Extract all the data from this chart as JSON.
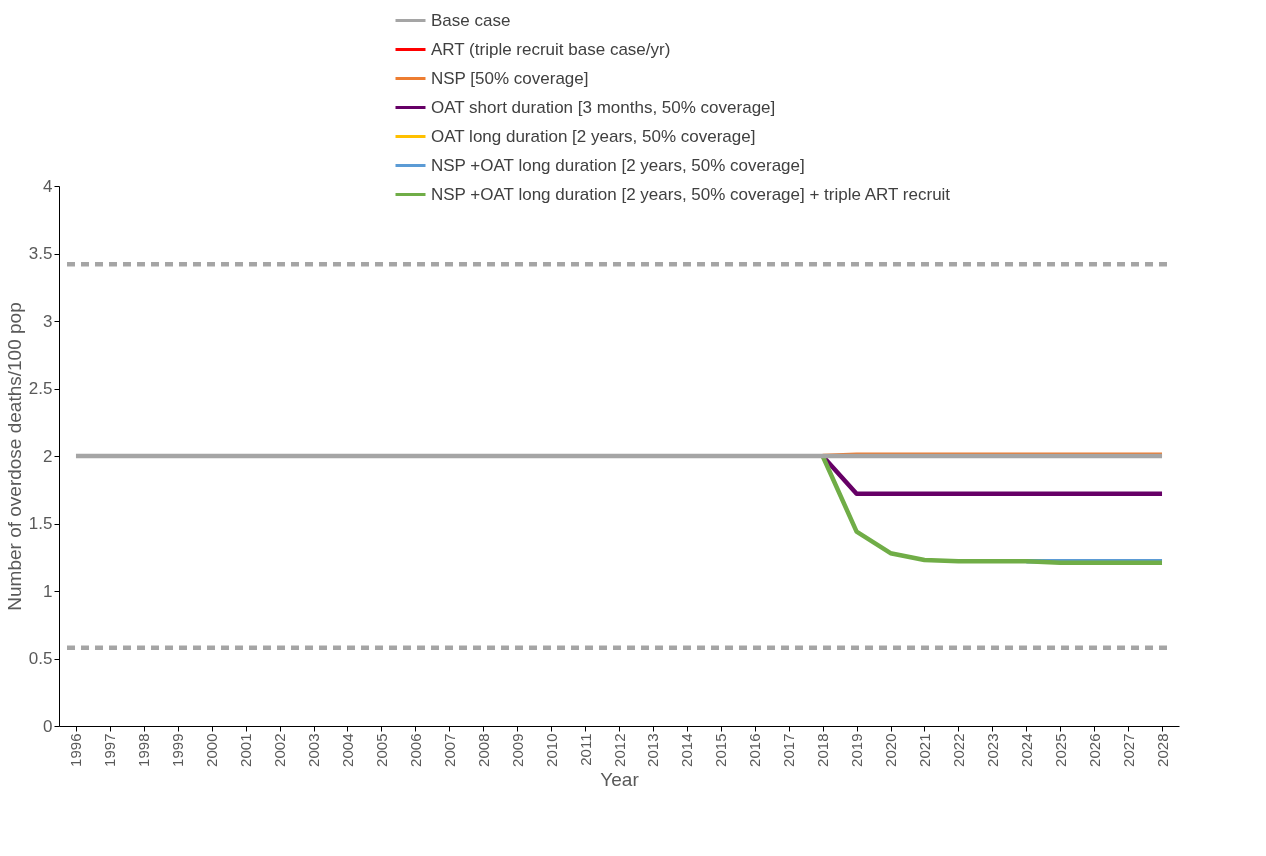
{
  "chart_data": {
    "type": "line",
    "xlabel": "Year",
    "ylabel": "Number of overdose deaths/100 pop",
    "categories": [
      "1996",
      "1997",
      "1998",
      "1999",
      "2000",
      "2001",
      "2002",
      "2003",
      "2004",
      "2005",
      "2006",
      "2007",
      "2008",
      "2009",
      "2010",
      "2011",
      "2012",
      "2013",
      "2014",
      "2015",
      "2016",
      "2017",
      "2018",
      "2019",
      "2020",
      "2021",
      "2022",
      "2023",
      "2024",
      "2025",
      "2026",
      "2027",
      "2028"
    ],
    "series": [
      {
        "name": "Base case",
        "color": "#a5a5a5",
        "values": [
          2,
          2,
          2,
          2,
          2,
          2,
          2,
          2,
          2,
          2,
          2,
          2,
          2,
          2,
          2,
          2,
          2,
          2,
          2,
          2,
          2,
          2,
          2,
          2,
          2,
          2,
          2,
          2,
          2,
          2,
          2,
          2,
          2
        ]
      },
      {
        "name": "ART (triple recruit base case/yr)",
        "color": "#ff0000",
        "values": [
          null,
          null,
          null,
          null,
          null,
          null,
          null,
          null,
          null,
          null,
          null,
          null,
          null,
          null,
          null,
          null,
          null,
          null,
          null,
          null,
          null,
          null,
          null,
          null,
          null,
          null,
          null,
          null,
          null,
          null,
          null,
          null,
          null
        ]
      },
      {
        "name": "NSP [50% coverage]",
        "color": "#ed7d31",
        "values": [
          null,
          null,
          null,
          null,
          null,
          null,
          null,
          null,
          null,
          null,
          null,
          null,
          null,
          null,
          null,
          null,
          null,
          null,
          null,
          null,
          null,
          null,
          2,
          2.01,
          2.01,
          2.01,
          2.01,
          2.01,
          2.01,
          2.01,
          2.01,
          2.01,
          2.01
        ]
      },
      {
        "name": "OAT short duration [3 months, 50% coverage]",
        "color": "#660066",
        "values": [
          null,
          null,
          null,
          null,
          null,
          null,
          null,
          null,
          null,
          null,
          null,
          null,
          null,
          null,
          null,
          null,
          null,
          null,
          null,
          null,
          null,
          null,
          2,
          1.72,
          1.72,
          1.72,
          1.72,
          1.72,
          1.72,
          1.72,
          1.72,
          1.72,
          1.72
        ]
      },
      {
        "name": "OAT long duration [2 years, 50% coverage]",
        "color": "#ffc000",
        "values": [
          null,
          null,
          null,
          null,
          null,
          null,
          null,
          null,
          null,
          null,
          null,
          null,
          null,
          null,
          null,
          null,
          null,
          null,
          null,
          null,
          null,
          null,
          null,
          null,
          null,
          null,
          null,
          null,
          null,
          null,
          null,
          null,
          null
        ]
      },
      {
        "name": "NSP +OAT long duration [2 years, 50% coverage]",
        "color": "#5b9bd5",
        "values": [
          null,
          null,
          null,
          null,
          null,
          null,
          null,
          null,
          null,
          null,
          null,
          null,
          null,
          null,
          null,
          null,
          null,
          null,
          null,
          null,
          null,
          null,
          null,
          null,
          null,
          null,
          null,
          null,
          1.22,
          1.22,
          1.22,
          1.22,
          1.22
        ]
      },
      {
        "name": "NSP +OAT long duration [2 years, 50% coverage] + triple ART recruit",
        "color": "#70ad47",
        "values": [
          null,
          null,
          null,
          null,
          null,
          null,
          null,
          null,
          null,
          null,
          null,
          null,
          null,
          null,
          null,
          null,
          null,
          null,
          null,
          null,
          null,
          null,
          2,
          1.44,
          1.28,
          1.23,
          1.22,
          1.22,
          1.22,
          1.21,
          1.21,
          1.21,
          1.21
        ]
      }
    ],
    "ylim": [
      0,
      4
    ],
    "yticks": [
      0,
      0.5,
      1,
      1.5,
      2,
      2.5,
      3,
      3.5,
      4
    ],
    "ref_lines": [
      {
        "axis": "y",
        "value": 3.42,
        "color": "#a5a5a5",
        "line_style": "dashed"
      },
      {
        "axis": "y",
        "value": 0.58,
        "color": "#a5a5a5",
        "line_style": "dashed"
      }
    ],
    "grid": false,
    "legend": "top",
    "marker": "none",
    "line_style": "solid"
  }
}
